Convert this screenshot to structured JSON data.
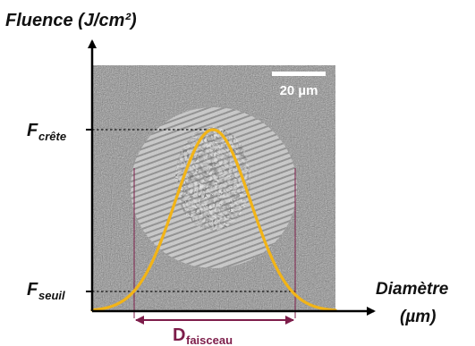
{
  "axes": {
    "y_label": "Fluence (J/cm²)",
    "x_label_line1": "Diamètre",
    "x_label_line2": "(µm)"
  },
  "y_ticks": {
    "peak": {
      "main": "F",
      "sub": "crête"
    },
    "threshold": {
      "main": "F",
      "sub": "seuil"
    }
  },
  "scale_bar": {
    "label": "20 µm"
  },
  "beam_diameter": {
    "main": "D",
    "sub": "faisceau"
  },
  "colors": {
    "curve": "#f2b417",
    "diameter_marker": "#7d1d4a",
    "axes": "#000000",
    "micrograph_background": "#8a8a8a",
    "ablated_spot": "#bdbdbd"
  },
  "micrograph": {
    "description_icon": "sem-micrograph-laser-ablation-spot"
  }
}
